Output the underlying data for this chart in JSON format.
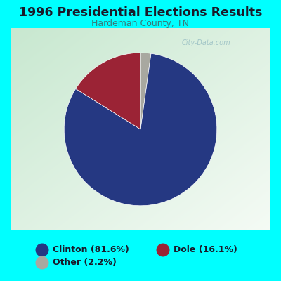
{
  "title": "1996 Presidential Elections Results",
  "subtitle": "Hardeman County, TN",
  "slices": [
    81.6,
    16.1,
    2.2
  ],
  "labels": [
    "Clinton (81.6%)",
    "Dole (16.1%)",
    "Other (2.2%)"
  ],
  "colors": [
    "#253882",
    "#9B2335",
    "#A8A8A0"
  ],
  "background_cyan": "#00FFFF",
  "background_chart_left": "#C8E8D0",
  "background_chart_right": "#F0F8F0",
  "title_color": "#1A1A2A",
  "subtitle_color": "#3A7A7A",
  "startangle": 98,
  "watermark": "City-Data.com",
  "legend_text_color": "#1A1A2A"
}
